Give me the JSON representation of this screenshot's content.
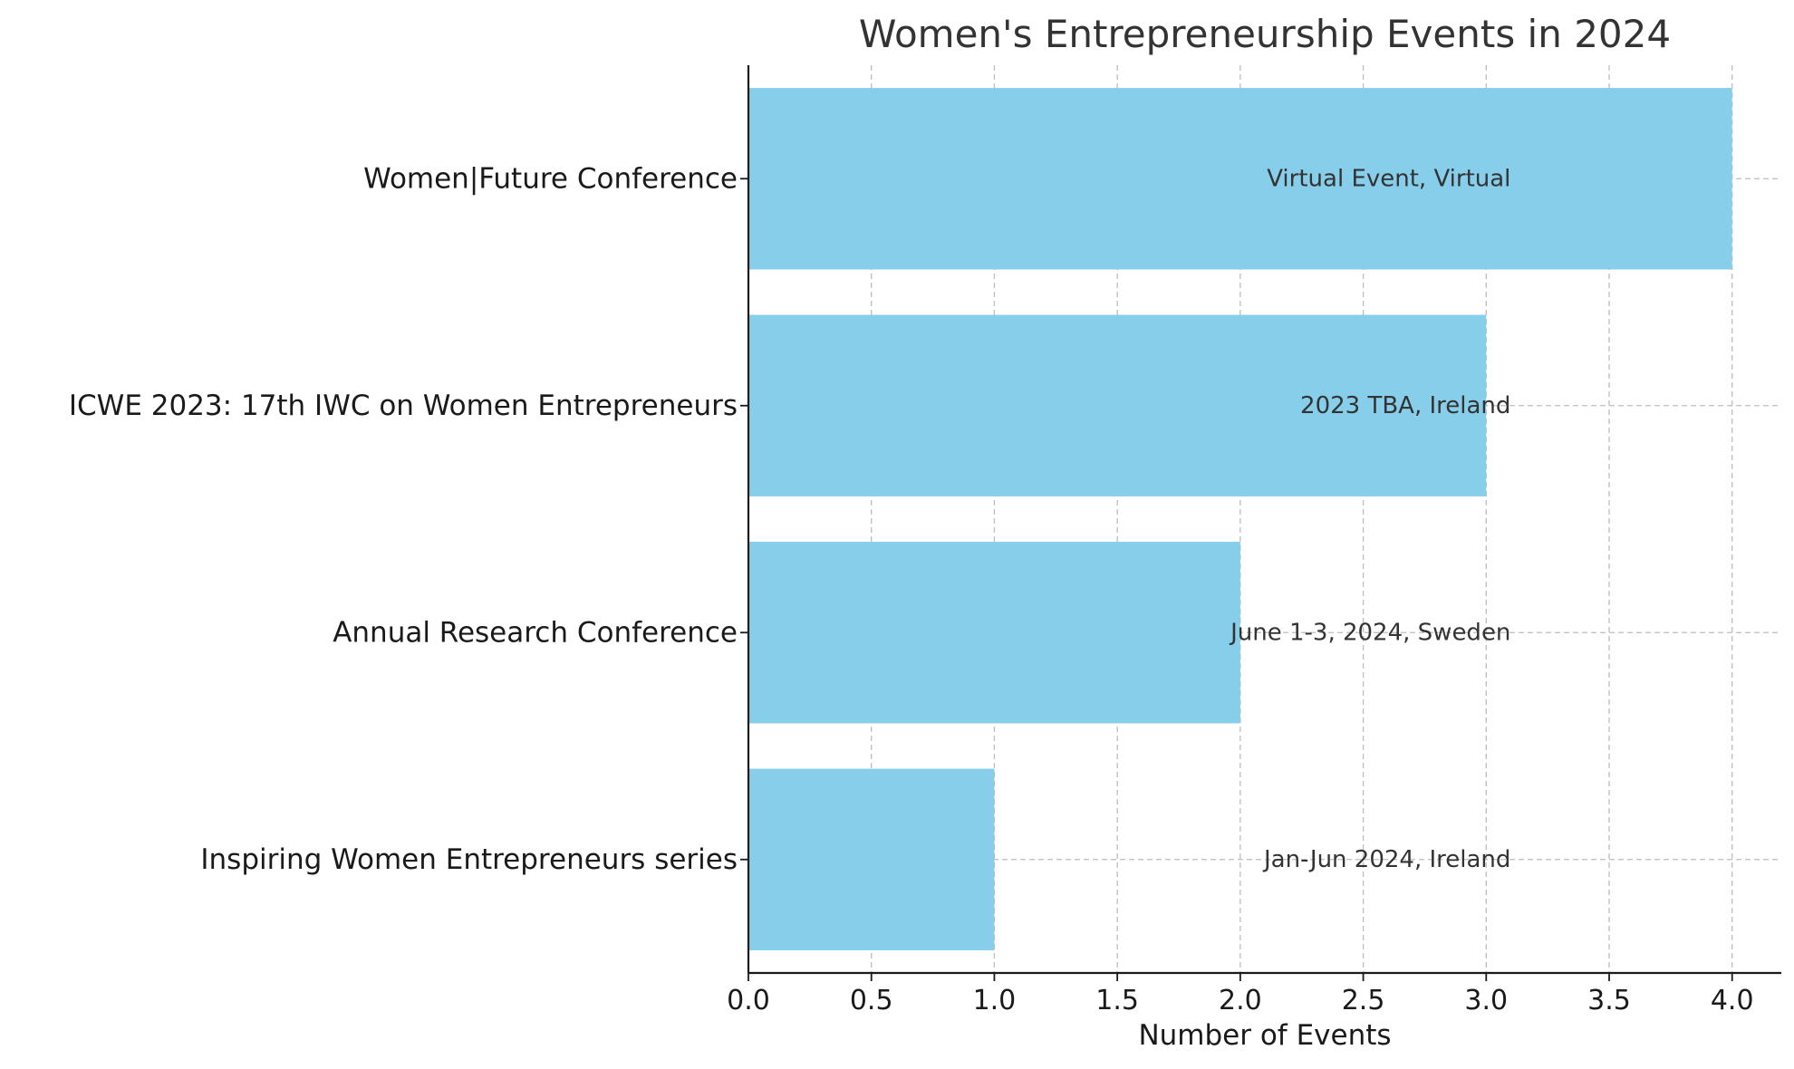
{
  "chart_data": {
    "type": "bar",
    "orientation": "horizontal",
    "title": "Women's Entrepreneurship Events in 2024",
    "xlabel": "Number of Events",
    "ylabel": "",
    "xlim": [
      0,
      4.2
    ],
    "xticks": [
      "0.0",
      "0.5",
      "1.0",
      "1.5",
      "2.0",
      "2.5",
      "3.0",
      "3.5",
      "4.0"
    ],
    "categories": [
      "Women|Future Conference",
      "ICWE 2023: 17th IWC on Women Entrepreneurs",
      "Annual Research Conference",
      "Inspiring Women Entrepreneurs series"
    ],
    "values": [
      4,
      3,
      2,
      1
    ],
    "annotations": [
      "Virtual Event, Virtual",
      "2023 TBA, Ireland",
      "June 1-3, 2024, Sweden",
      "Jan-Jun 2024, Ireland"
    ],
    "annotation_x": 3.1,
    "grid": true,
    "bar_color": "#87ceeb"
  }
}
